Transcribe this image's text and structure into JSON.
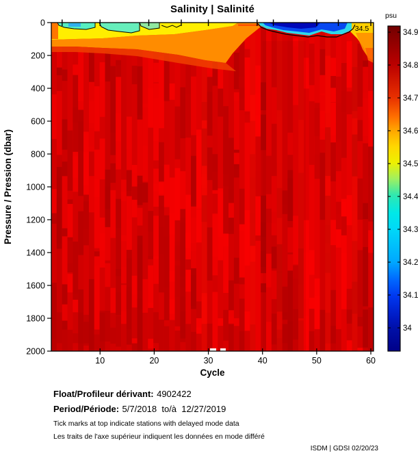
{
  "title": "Salinity | Salinité",
  "colorbar": {
    "unit_label": "psu",
    "ticks": [
      "34.9",
      "34.8",
      "34.7",
      "34.6",
      "34.5",
      "34.4",
      "34.3",
      "34.2",
      "34.1",
      "34"
    ]
  },
  "axes": {
    "xlabel": "Cycle",
    "ylabel": "Pressure / Pression (dbar)",
    "x_ticks": [
      10,
      20,
      30,
      40,
      50,
      60
    ],
    "y_ticks": [
      0,
      200,
      400,
      600,
      800,
      1000,
      1200,
      1400,
      1600,
      1800,
      2000
    ]
  },
  "chart_data": {
    "type": "heatmap",
    "title": "Salinity | Salinité",
    "xlabel": "Cycle",
    "ylabel": "Pressure / Pression (dbar)",
    "colorbar_label": "psu",
    "colorbar_ticks": [
      34.9,
      34.8,
      34.7,
      34.6,
      34.5,
      34.4,
      34.3,
      34.2,
      34.1,
      34.0
    ],
    "colorbar_range_psu": [
      33.95,
      34.95
    ],
    "x_range_cycles": [
      1,
      60
    ],
    "y_range_dbar": [
      0,
      2000
    ],
    "contour_label": "34.5",
    "delayed_mode_tick_cycles": [
      3,
      10,
      19,
      25,
      30,
      39,
      42,
      50,
      54,
      60
    ],
    "features": [
      {
        "region": "surface patch, cycles 2-16, 0-50 dbar",
        "approx_salinity_psu": 34.45,
        "color": "cyan-green"
      },
      {
        "region": "surface wedge, cycles 1-35, 0-200 dbar thinning eastward",
        "approx_salinity_psu": 34.6,
        "color": "yellow-orange"
      },
      {
        "region": "surface minimum, cycles 40-55, 0-40 dbar",
        "approx_salinity_psu": 34.15,
        "color": "dark blue"
      },
      {
        "region": "surface, cycles 56-60, 0-150 dbar",
        "approx_salinity_psu": 34.6,
        "color": "yellow-orange"
      },
      {
        "region": "interior below ~150 dbar, all cycles",
        "approx_salinity_psu": 34.85,
        "color": "red"
      },
      {
        "region": "deep layer 1700-2000 dbar",
        "approx_salinity_psu": 34.9,
        "color": "dark red"
      }
    ],
    "palette": {
      "colormap": "jet",
      "deep_red": "#b80000",
      "body_red": "#d40000",
      "bright_red": "#ee0000",
      "surface_orange": "#ff8c00",
      "surface_yellow": "#ffee00",
      "surface_cyan": "#55eec0",
      "surface_blue": "#0848f0",
      "surface_dark_blue": "#0008b8"
    }
  },
  "footer": {
    "float_label": "Float/Profileur dérivant:",
    "float_value": "4902422",
    "period_label": "Period/Période:",
    "period_value": "5/7/2018  to/à  12/27/2019",
    "note_en": "Tick marks at top indicate stations with delayed mode data",
    "note_fr": "Les traits de l'axe supérieur indiquent les données en mode différé"
  },
  "credit": "ISDM | GDSI 02/20/23"
}
